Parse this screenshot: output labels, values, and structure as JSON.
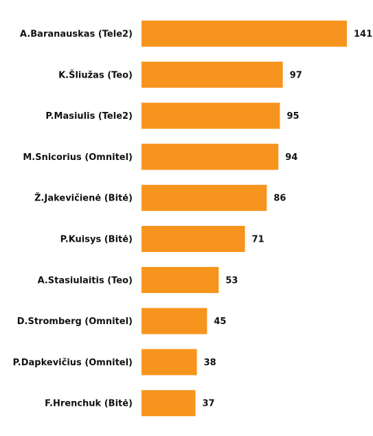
{
  "chart_data": {
    "type": "bar",
    "orientation": "horizontal",
    "categories": [
      "A.Baranauskas (Tele2)",
      "K.Šliužas (Teo)",
      "P.Masiulis (Tele2)",
      "M.Snicorius (Omnitel)",
      "Ž.Jakevičienė (Bitė)",
      "P.Kuisys (Bitė)",
      "A.Stasiulaitis (Teo)",
      "D.Stromberg (Omnitel)",
      "P.Dapkevičius (Omnitel)",
      "F.Hrenchuk (Bitė)"
    ],
    "values": [
      141,
      97,
      95,
      94,
      86,
      71,
      53,
      45,
      38,
      37
    ],
    "value_labels": [
      "141",
      "97",
      "95",
      "94",
      "86",
      "71",
      "53",
      "45",
      "38",
      "37"
    ],
    "xlim": [
      0,
      141
    ],
    "grid": false,
    "legend": "none",
    "bar_color": "#f7941d"
  }
}
